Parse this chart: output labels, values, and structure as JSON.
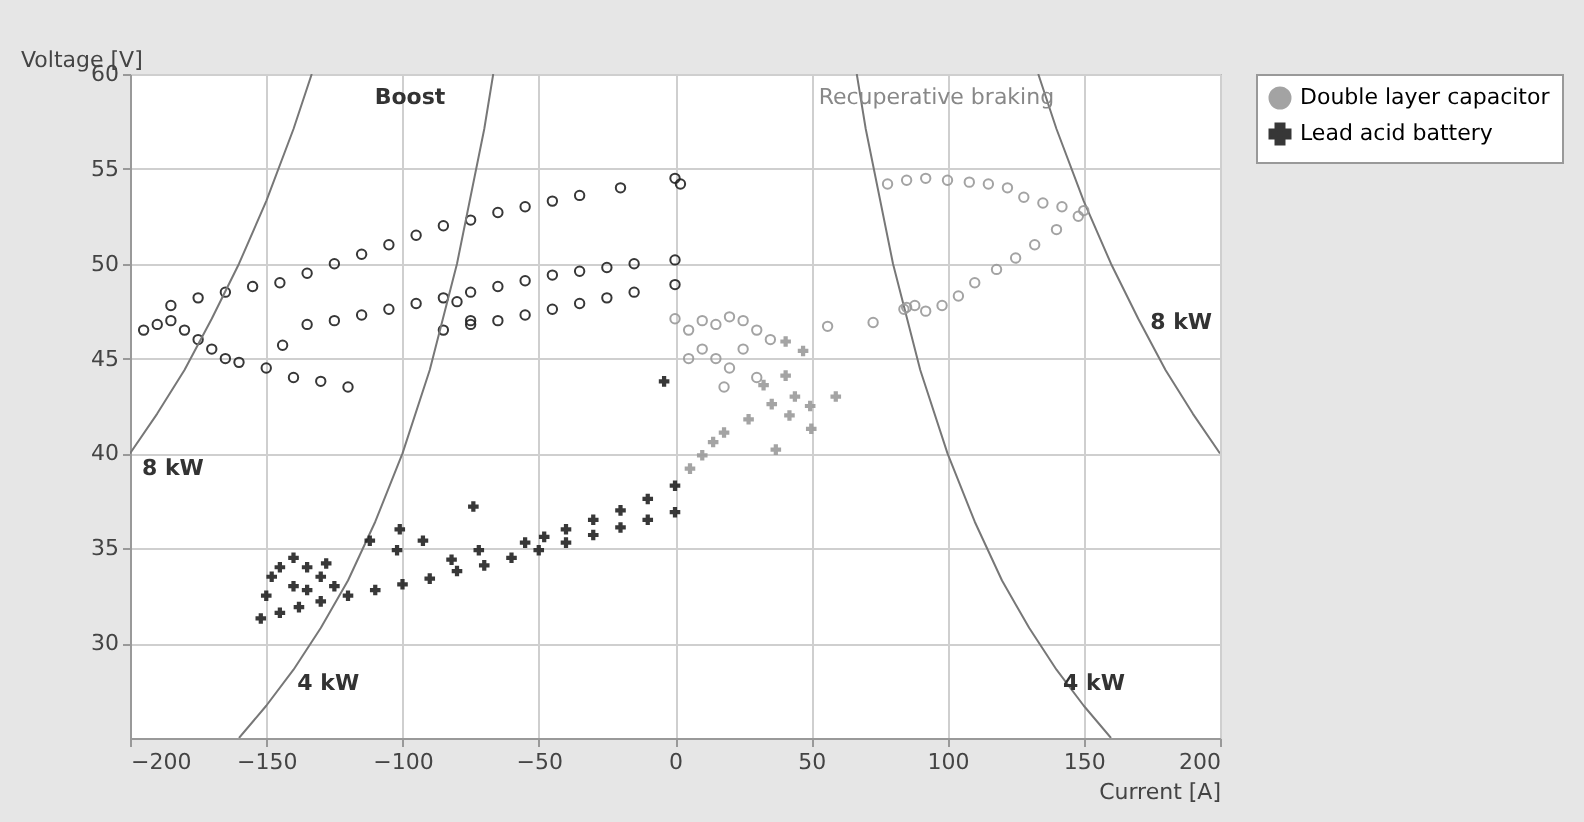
{
  "chart_data": {
    "type": "scatter",
    "xlabel": "Current [A]",
    "ylabel": "Voltage [V]",
    "xlim": [
      -200,
      200
    ],
    "xticks": [
      -200,
      -150,
      -100,
      -50,
      0,
      50,
      100,
      150,
      200
    ],
    "ylim": [
      25,
      60
    ],
    "yticks": [
      30,
      35,
      40,
      45,
      50,
      55,
      60
    ],
    "grid": true,
    "legend": "right",
    "annotations": [
      "Boost",
      "Recuperative braking",
      {
        "text": "8 kW",
        "x": -200,
        "y": 40
      },
      {
        "text": "4 kW",
        "x": -143,
        "y": 28.7
      },
      {
        "text": "4 kW",
        "x": 138,
        "y": 28.7
      },
      {
        "text": "8 kW",
        "x": 170,
        "y": 47.7
      }
    ],
    "series": [
      {
        "name": "Double layer capacitor",
        "color": "#9a9a9a",
        "marker": "circle",
        "x": [
          5,
          10,
          15,
          20,
          25,
          30,
          10,
          15,
          20,
          25,
          30,
          18,
          5,
          35,
          0,
          56,
          72.7,
          85,
          78,
          85,
          92,
          100,
          108,
          115,
          122,
          128,
          135,
          142,
          150,
          148,
          140,
          132,
          125,
          118,
          110,
          104,
          98,
          92,
          88,
          84
        ],
        "values": [
          46.5,
          47,
          46.8,
          47.2,
          47,
          46.5,
          45.5,
          45,
          44.5,
          45.5,
          44,
          43.5,
          45,
          46,
          47.1,
          46.7,
          46.9,
          47.7,
          54.2,
          54.4,
          54.5,
          54.4,
          54.3,
          54.2,
          54,
          53.5,
          53.2,
          53,
          52.8,
          52.5,
          51.8,
          51,
          50.3,
          49.7,
          49,
          48.3,
          47.8,
          47.5,
          47.8,
          47.6
        ]
      },
      {
        "color": "#222222",
        "marker": "circle",
        "x": [
          -185,
          -175,
          -165,
          -155,
          -145,
          -135,
          -125,
          -115,
          -105,
          -95,
          -85,
          -75,
          -65,
          -55,
          -45,
          -35,
          -20,
          0,
          2,
          -135,
          -125,
          -115,
          -105,
          -95,
          -85,
          -75,
          -65,
          -55,
          -45,
          -35,
          -25,
          -15,
          0,
          -85,
          -75,
          -65,
          -55,
          -45,
          -35,
          -25,
          -15,
          0,
          -80,
          -75,
          -195,
          -190,
          -185,
          -180,
          -175,
          -170,
          -165,
          -160,
          -150,
          -140,
          -130,
          -120,
          -144
        ],
        "values": [
          47.8,
          48.2,
          48.5,
          48.8,
          49,
          49.5,
          50,
          50.5,
          51,
          51.5,
          52,
          52.3,
          52.7,
          53,
          53.3,
          53.6,
          54,
          54.5,
          54.2,
          46.8,
          47,
          47.3,
          47.6,
          47.9,
          48.2,
          48.5,
          48.8,
          49.1,
          49.4,
          49.6,
          49.8,
          50,
          50.2,
          46.5,
          46.8,
          47,
          47.3,
          47.6,
          47.9,
          48.2,
          48.5,
          48.9,
          48,
          47,
          46.5,
          46.8,
          47,
          46.5,
          46,
          45.5,
          45,
          44.8,
          44.5,
          44,
          43.8,
          43.5,
          45.7
        ]
      },
      {
        "name": "Lead acid battery",
        "color": "#222222",
        "marker": "cross",
        "x": [
          -152,
          -145,
          -138,
          -130,
          -120,
          -110,
          -100,
          -90,
          -80,
          -70,
          -60,
          -50,
          -40,
          -30,
          -20,
          -10,
          0,
          -55,
          -48,
          -40,
          -30,
          -20,
          -10,
          0,
          -148,
          -145,
          -140,
          -135,
          -130,
          -128,
          -140,
          -150,
          -135,
          -125,
          -74,
          -101,
          -112,
          -102,
          -92.5,
          -82,
          -72,
          -4
        ],
        "values": [
          31.3,
          31.6,
          31.9,
          32.2,
          32.5,
          32.8,
          33.1,
          33.4,
          33.8,
          34.1,
          34.5,
          34.9,
          35.3,
          35.7,
          36.1,
          36.5,
          36.9,
          35.3,
          35.6,
          36,
          36.5,
          37,
          37.6,
          38.3,
          33.5,
          34,
          34.5,
          34,
          33.5,
          34.2,
          33,
          32.5,
          32.8,
          33,
          37.2,
          36,
          35.4,
          34.9,
          35.4,
          34.4,
          34.9,
          43.8
        ]
      },
      {
        "color": "#9a9a9a",
        "marker": "cross",
        "x": [
          40.6,
          47,
          40.6,
          44,
          59,
          49.6,
          35.5,
          27,
          18,
          14,
          10,
          5.5,
          37,
          50,
          42,
          32.5
        ],
        "values": [
          45.9,
          45.4,
          44.1,
          43,
          43,
          42.5,
          42.6,
          41.8,
          41.1,
          40.6,
          39.9,
          39.2,
          40.2,
          41.3,
          42,
          43.6
        ]
      },
      {
        "type": "line",
        "color": "#777777",
        "x": [
          -200,
          -190,
          -180,
          -170,
          -160,
          -150,
          -140,
          -133.3
        ],
        "values": [
          40,
          42.1,
          44.4,
          47.1,
          50,
          53.3,
          57.1,
          60
        ]
      },
      {
        "type": "line",
        "color": "#777777",
        "x": [
          -160,
          -150,
          -140,
          -130,
          -120,
          -110,
          -100,
          -90,
          -80,
          -70,
          -66.7
        ],
        "values": [
          25,
          26.7,
          28.6,
          30.8,
          33.3,
          36.4,
          40,
          44.4,
          50,
          57.1,
          60
        ]
      },
      {
        "type": "line",
        "color": "#777777",
        "x": [
          66.7,
          70,
          80,
          90,
          100,
          110,
          120,
          130,
          140,
          150,
          160
        ],
        "values": [
          60,
          57.1,
          50,
          44.4,
          40,
          36.4,
          33.3,
          30.8,
          28.6,
          26.7,
          25
        ]
      },
      {
        "type": "line",
        "color": "#777777",
        "x": [
          133.3,
          140,
          150,
          160,
          170,
          180,
          190,
          200
        ],
        "values": [
          60,
          57.1,
          53.3,
          50,
          47.1,
          44.4,
          42.1,
          40
        ]
      }
    ]
  }
}
